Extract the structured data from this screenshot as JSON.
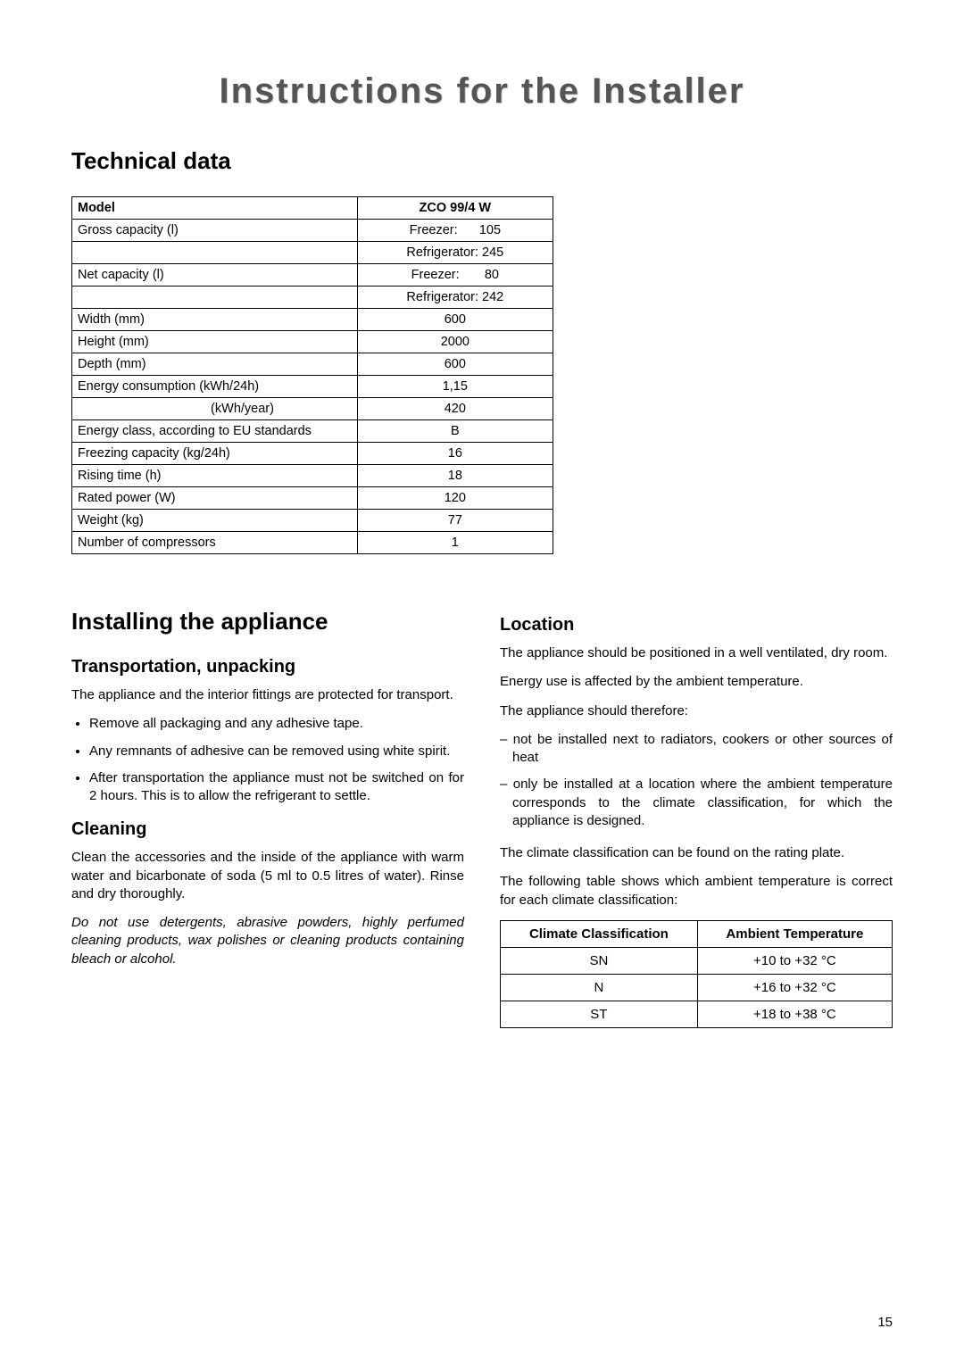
{
  "title": "Instructions for the Installer",
  "page_number": "15",
  "technical_data": {
    "heading": "Technical data",
    "header_label": "Model",
    "header_value": "ZCO 99/4 W",
    "rows": [
      {
        "label": "Gross capacity (l)",
        "value": "Freezer:      105"
      },
      {
        "label": "",
        "value": "Refrigerator: 245"
      },
      {
        "label": "Net capacity (l)",
        "value": "Freezer:       80"
      },
      {
        "label": "",
        "value": "Refrigerator: 242"
      },
      {
        "label": "Width (mm)",
        "value": "600"
      },
      {
        "label": "Height (mm)",
        "value": "2000"
      },
      {
        "label": "Depth (mm)",
        "value": "600"
      },
      {
        "label": "Energy consumption (kWh/24h)",
        "value": "1,15"
      },
      {
        "label": "                                     (kWh/year)",
        "value": "420"
      },
      {
        "label": "Energy class, according to EU standards",
        "value": "B"
      },
      {
        "label": "Freezing capacity (kg/24h)",
        "value": "16"
      },
      {
        "label": "Rising time (h)",
        "value": "18"
      },
      {
        "label": "Rated power (W)",
        "value": "120"
      },
      {
        "label": "Weight (kg)",
        "value": "77"
      },
      {
        "label": "Number of compressors",
        "value": "1"
      }
    ]
  },
  "installing": {
    "heading": "Installing the appliance",
    "transport": {
      "heading": "Transportation, unpacking",
      "p1": "The appliance and the interior fittings are protected for transport.",
      "bullets": [
        "Remove all packaging and any adhesive tape.",
        "Any remnants of adhesive can be removed using white spirit.",
        "After transportation the appliance must not be switched on for 2 hours. This is to allow the refrigerant to settle."
      ]
    },
    "cleaning": {
      "heading": "Cleaning",
      "p1": "Clean the accessories and the inside of the appliance with warm water and bicarbonate of soda (5 ml to 0.5 litres of water). Rinse and dry thoroughly.",
      "p2": "Do not use detergents, abrasive powders, highly perfumed cleaning products, wax polishes or cleaning products containing bleach or alcohol."
    },
    "location": {
      "heading": "Location",
      "p1": "The appliance should be positioned in a well ventilated, dry room.",
      "p2": "Energy use is affected by the ambient temperature.",
      "p3": "The appliance should therefore:",
      "bullets": [
        "not be installed next to radiators, cookers or other sources of heat",
        "only be installed at a location where the ambient temperature corresponds to the climate classification, for which the appliance is designed."
      ],
      "p4": "The climate classification can be found on the rating plate.",
      "p5": "The following table shows which ambient temperature is correct for each climate classification:"
    }
  },
  "climate_table": {
    "headers": [
      "Climate Classification",
      "Ambient Temperature"
    ],
    "rows": [
      [
        "SN",
        "+10 to +32 °C"
      ],
      [
        "N",
        "+16 to +32 °C"
      ],
      [
        "ST",
        "+18 to +38 °C"
      ]
    ]
  }
}
